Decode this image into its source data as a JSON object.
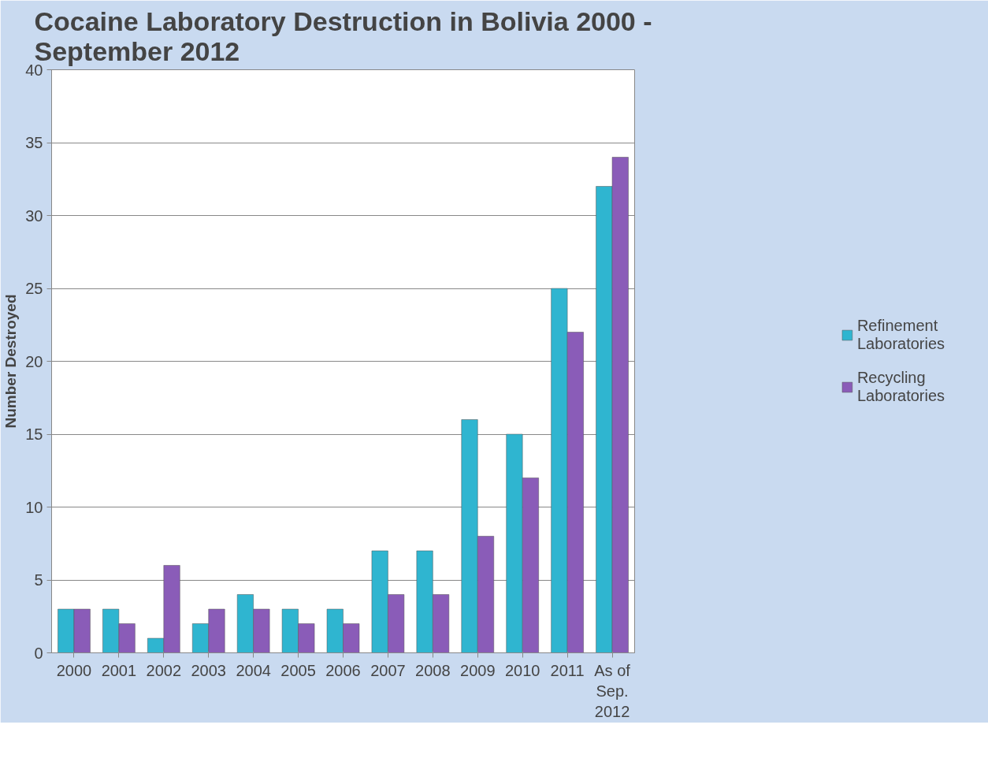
{
  "chart_data": {
    "type": "bar",
    "title": "Cocaine Laboratory Destruction in Bolivia 2000 - September 2012",
    "ylabel": "Number Destroyed",
    "categories": [
      "2000",
      "2001",
      "2002",
      "2003",
      "2004",
      "2005",
      "2006",
      "2007",
      "2008",
      "2009",
      "2010",
      "2011",
      "As of Sep. 2012"
    ],
    "series": [
      {
        "name": "Refinement Laboratories",
        "color": "#2fb5d0",
        "values": [
          3,
          3,
          1,
          2,
          4,
          3,
          3,
          7,
          7,
          16,
          15,
          25,
          32
        ]
      },
      {
        "name": "Recycling Laboratories",
        "color": "#8a5cb8",
        "values": [
          3,
          2,
          6,
          3,
          3,
          2,
          2,
          4,
          4,
          8,
          12,
          22,
          34
        ]
      }
    ],
    "ylim": [
      0,
      40
    ],
    "yticks": [
      0,
      5,
      10,
      15,
      20,
      25,
      30,
      35,
      40
    ],
    "grid": "y",
    "legend": "right"
  }
}
